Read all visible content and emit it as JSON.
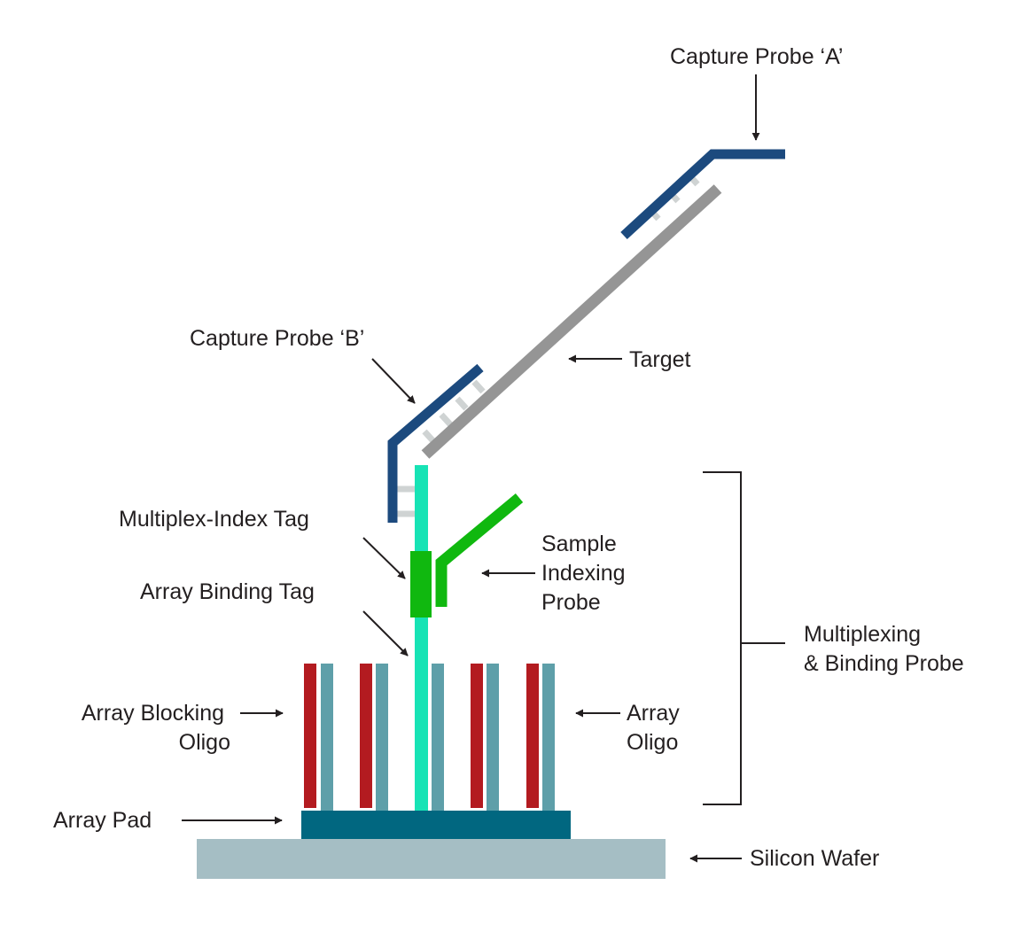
{
  "labels": {
    "capture_probe_a": "Capture Probe ‘A’",
    "capture_probe_b": "Capture Probe ‘B’",
    "target": "Target",
    "multiplex_index_tag": "Multiplex-Index Tag",
    "sample_indexing_probe": [
      "Sample",
      "Indexing",
      "Probe"
    ],
    "array_binding_tag": "Array Binding Tag",
    "multiplexing_binding_probe": [
      "Multiplexing",
      "& Binding Probe"
    ],
    "array_blocking_oligo": [
      "Array Blocking",
      "Oligo"
    ],
    "array_oligo": [
      "Array",
      "Oligo"
    ],
    "array_pad": "Array Pad",
    "silicon_wafer": "Silicon Wafer"
  },
  "colors": {
    "capture_probe": "#1c4a7e",
    "target": "#959595",
    "hybridization_rungs": "#cfd3d3",
    "multiplexing_probe": "#17e3b5",
    "index_tag": "#10b80f",
    "blocking_oligo": "#b31b20",
    "array_oligo": "#5e9fa9",
    "array_pad": "#016780",
    "silicon_wafer": "#a5bec4",
    "text": "#231f20"
  }
}
